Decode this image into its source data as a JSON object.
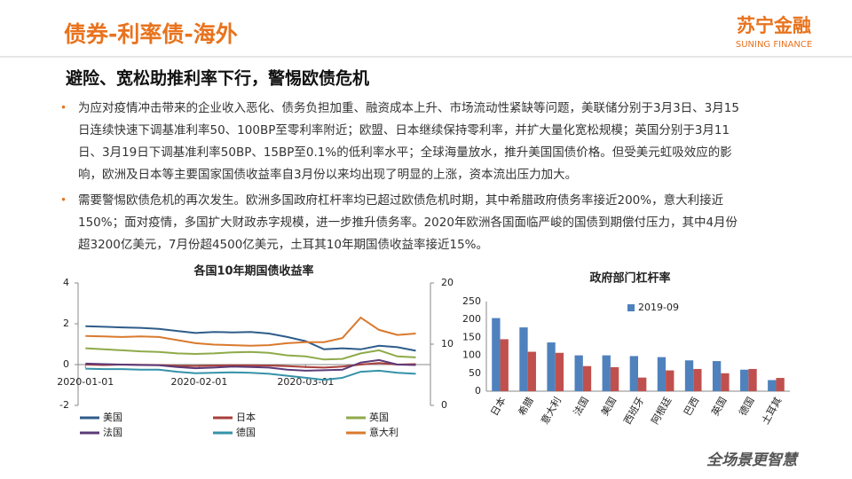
{
  "header": {
    "title": "债券-利率债-海外",
    "logo": "苏宁金融",
    "logo_en": "SUNING FINANCE",
    "subtitle": "避险、宽松助推利率下行，警惕欧债危机"
  },
  "bullets": [
    [
      "为应对疫情冲击带来的企业收入恶化、债务负担加重、融资成本上升、市场流动性紧缺等问题，美联储分别于3月3日、3月15",
      "日连续快速下调基准利率50、100BP至零利率附近；欧盟、日本继续保持零利率，并扩大量化宽松规模；英国分别于3月11",
      "日、3月19日下调基准利率50BP、15BP至0.1%的低利率水平；全球海量放水，推升美国国债价格。但受美元虹吸效应的影",
      "响，欧洲及日本等主要国家国债收益率自3月份以来均出现了明显的上涨，资本流出压力加大。"
    ],
    [
      "需要警惕欧债危机的再次发生。欧洲多国政府杠杆率均已超过欧债危机时期，其中希腊政府债务率接近200%，意大利接近",
      "150%；面对疫情，多国扩大财政赤字规模，进一步推升债务率。2020年欧洲各国面临严峻的国债到期偿付压力，其中4月份",
      "超3200亿美元，7月份超4500亿美元，土耳其10年期国债收益率接近15%。"
    ]
  ],
  "footer": "全场景更智慧",
  "chart_data": [
    {
      "type": "line",
      "title": "各国10年期国债收益率",
      "x": [
        "2020-01-01",
        "2020-01-06",
        "2020-01-11",
        "2020-01-16",
        "2020-01-21",
        "2020-01-26",
        "2020-01-31",
        "2020-02-05",
        "2020-02-10",
        "2020-02-15",
        "2020-02-20",
        "2020-02-25",
        "2020-03-01",
        "2020-03-06",
        "2020-03-11",
        "2020-03-16",
        "2020-03-21",
        "2020-03-26",
        "2020-03-31"
      ],
      "xlim": [
        "2019-12-30",
        "2020-04-04"
      ],
      "xticks": [
        "2020-01-01",
        "2020-02-01",
        "2020-03-01"
      ],
      "ylim": [
        -2,
        4
      ],
      "yticks": [
        -2,
        0,
        2,
        4
      ],
      "y2lim": [
        0,
        20
      ],
      "y2ticks": [
        0,
        10,
        20
      ],
      "series": [
        {
          "name": "美国",
          "color": "#2E5C8A",
          "values": [
            1.88,
            1.85,
            1.82,
            1.8,
            1.75,
            1.65,
            1.55,
            1.6,
            1.58,
            1.6,
            1.52,
            1.35,
            1.15,
            0.75,
            0.8,
            0.75,
            0.92,
            0.85,
            0.68
          ]
        },
        {
          "name": "日本",
          "color": "#A93F3B",
          "values": [
            0,
            -0.02,
            0,
            -0.01,
            -0.02,
            -0.06,
            -0.07,
            -0.05,
            -0.03,
            -0.04,
            -0.05,
            -0.08,
            -0.12,
            -0.15,
            -0.1,
            0,
            0.08,
            0,
            0.02
          ]
        },
        {
          "name": "英国",
          "color": "#8FAA4A",
          "values": [
            0.8,
            0.75,
            0.7,
            0.65,
            0.62,
            0.55,
            0.52,
            0.55,
            0.6,
            0.62,
            0.58,
            0.45,
            0.4,
            0.25,
            0.28,
            0.55,
            0.7,
            0.4,
            0.35
          ]
        },
        {
          "name": "法国",
          "color": "#5C3A78",
          "values": [
            0.05,
            0.02,
            0,
            -0.02,
            -0.03,
            -0.12,
            -0.18,
            -0.15,
            -0.1,
            -0.12,
            -0.15,
            -0.25,
            -0.3,
            -0.28,
            -0.25,
            0.1,
            0.22,
            0,
            -0.02
          ]
        },
        {
          "name": "德国",
          "color": "#3592A8",
          "values": [
            -0.2,
            -0.22,
            -0.22,
            -0.25,
            -0.25,
            -0.35,
            -0.42,
            -0.4,
            -0.38,
            -0.4,
            -0.45,
            -0.55,
            -0.65,
            -0.75,
            -0.65,
            -0.35,
            -0.3,
            -0.4,
            -0.45
          ]
        },
        {
          "name": "意大利",
          "color": "#D97A2E",
          "values": [
            1.4,
            1.38,
            1.35,
            1.38,
            1.35,
            1.2,
            1.05,
            0.98,
            0.95,
            0.92,
            0.95,
            1.05,
            1.1,
            1.1,
            1.3,
            2.3,
            1.7,
            1.45,
            1.52
          ]
        }
      ]
    },
    {
      "type": "bar",
      "title": "政府部门杠杆率",
      "categories": [
        "日本",
        "希腊",
        "意大利",
        "法国",
        "美国",
        "西班牙",
        "阿根廷",
        "巴西",
        "英国",
        "德国",
        "土耳其"
      ],
      "ylim": [
        0,
        250
      ],
      "yticks": [
        0,
        50,
        100,
        150,
        200,
        250
      ],
      "series": [
        {
          "name": "2019-09",
          "color": "#4F81BD",
          "values": [
            204,
            178,
            136,
            100,
            100,
            98,
            95,
            86,
            84,
            60,
            31
          ]
        },
        {
          "name": null,
          "color": "#C0504D",
          "values": [
            145,
            110,
            107,
            70,
            67,
            38,
            58,
            62,
            50,
            62,
            37
          ]
        }
      ]
    }
  ]
}
